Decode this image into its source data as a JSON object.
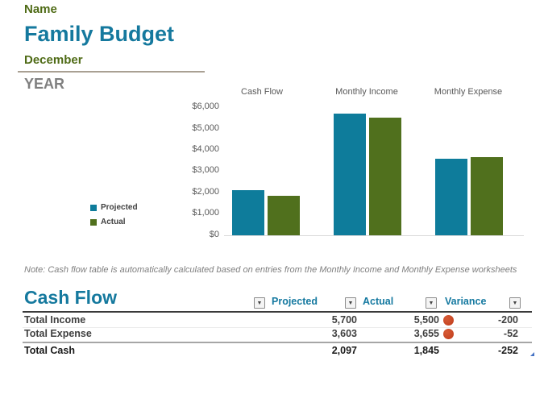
{
  "header": {
    "name_label": "Name",
    "title": "Family Budget",
    "month": "December",
    "year_label": "YEAR"
  },
  "chart_data": {
    "type": "bar",
    "title": "",
    "categories": [
      "Cash Flow",
      "Monthly Income",
      "Monthly Expense"
    ],
    "series": [
      {
        "name": "Projected",
        "color": "#0e7c9b",
        "values": [
          2097,
          5700,
          3603
        ]
      },
      {
        "name": "Actual",
        "color": "#50701d",
        "values": [
          1845,
          5500,
          3655
        ]
      }
    ],
    "y_ticks": [
      "$6,000",
      "$5,000",
      "$4,000",
      "$3,000",
      "$2,000",
      "$1,000",
      "$0"
    ],
    "ylim": [
      0,
      6000
    ],
    "grid": false,
    "legend_position": "left",
    "xlabel": "",
    "ylabel": ""
  },
  "note": "Note: Cash flow table is automatically calculated based on entries from the Monthly Income and Monthly Expense worksheets",
  "table": {
    "title": "Cash Flow",
    "columns": [
      "Projected",
      "Actual",
      "Variance"
    ],
    "rows": [
      {
        "label": "Total Income",
        "projected": "5,700",
        "actual": "5,500",
        "variance": "-200",
        "icon": "red-circle"
      },
      {
        "label": "Total Expense",
        "projected": "3,603",
        "actual": "3,655",
        "variance": "-52",
        "icon": "red-circle"
      },
      {
        "label": "Total Cash",
        "projected": "2,097",
        "actual": "1,845",
        "variance": "-252",
        "icon": null
      }
    ]
  },
  "colors": {
    "accent_teal": "#15799e",
    "accent_olive": "#4f6b16",
    "bar_projected": "#0e7c9b",
    "bar_actual": "#50701d",
    "status_red": "#c5472a"
  }
}
